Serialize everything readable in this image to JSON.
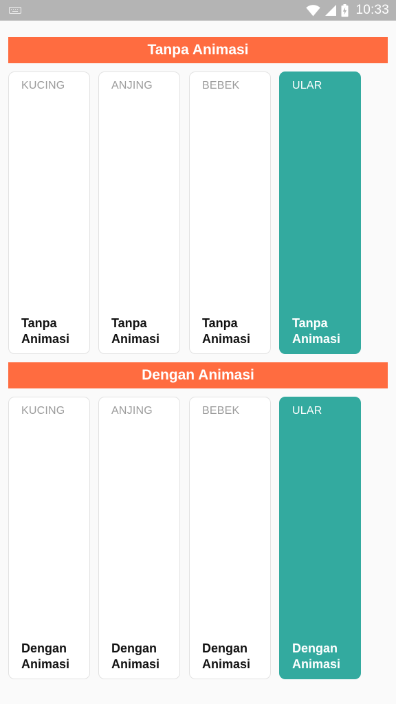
{
  "status_bar": {
    "time": "10:33",
    "icons": [
      "keyboard-icon",
      "wifi-icon",
      "cell-signal-icon",
      "battery-charging-icon"
    ]
  },
  "sections": [
    {
      "title": "Tanpa Animasi",
      "cards": [
        {
          "top": "KUCING",
          "line1": "Tanpa",
          "line2": "Animasi",
          "selected": false
        },
        {
          "top": "ANJING",
          "line1": "Tanpa",
          "line2": "Animasi",
          "selected": false
        },
        {
          "top": "BEBEK",
          "line1": "Tanpa",
          "line2": "Animasi",
          "selected": false
        },
        {
          "top": "ULAR",
          "line1": "Tanpa",
          "line2": "Animasi",
          "selected": true
        }
      ]
    },
    {
      "title": "Dengan Animasi",
      "cards": [
        {
          "top": "KUCING",
          "line1": "Dengan",
          "line2": "Animasi",
          "selected": false
        },
        {
          "top": "ANJING",
          "line1": "Dengan",
          "line2": "Animasi",
          "selected": false
        },
        {
          "top": "BEBEK",
          "line1": "Dengan",
          "line2": "Animasi",
          "selected": false
        },
        {
          "top": "ULAR",
          "line1": "Dengan",
          "line2": "Animasi",
          "selected": true
        }
      ]
    }
  ],
  "colors": {
    "header": "#ff6c40",
    "selected_card": "#33aa9f",
    "status_bar": "#b4b4b4"
  }
}
